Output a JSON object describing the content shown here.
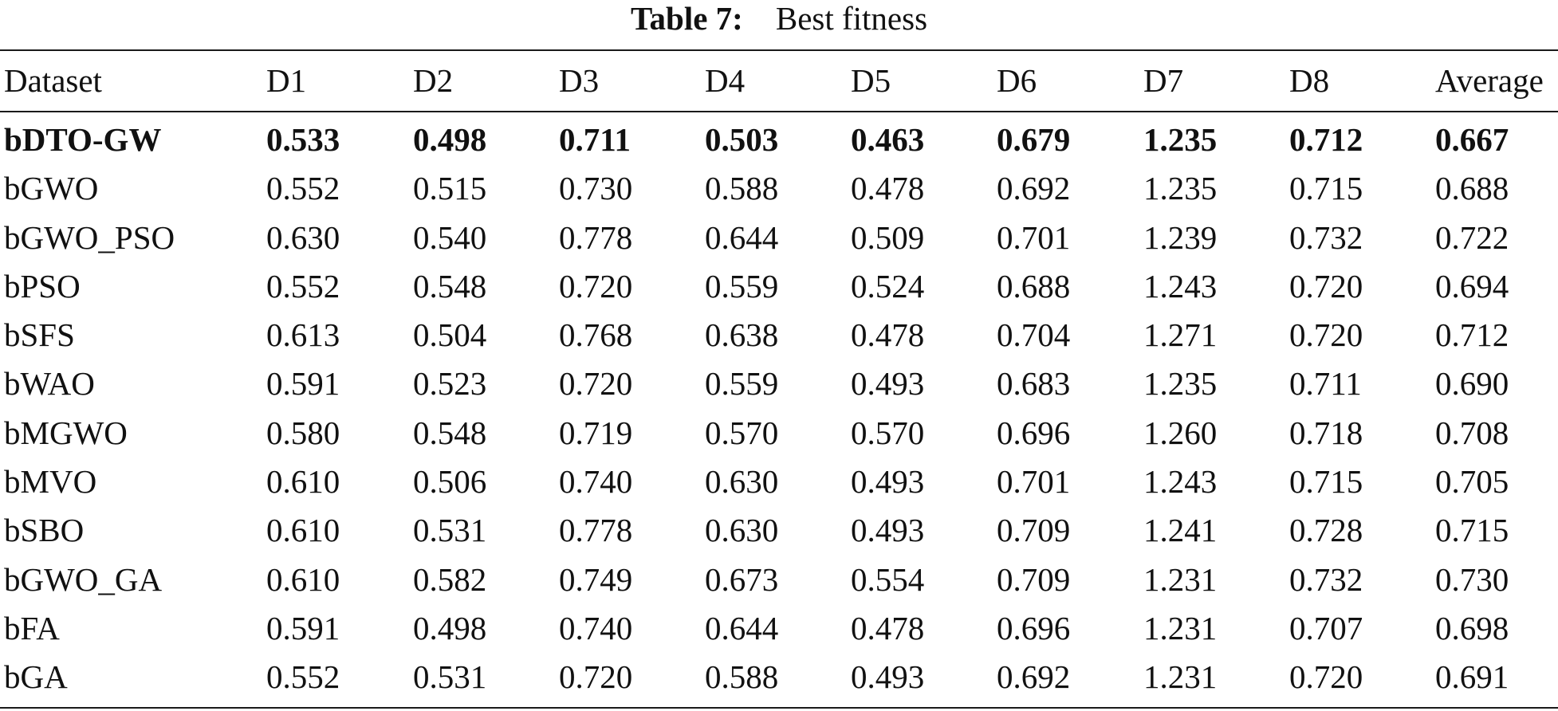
{
  "caption": {
    "label": "Table 7:",
    "text": "Best fitness"
  },
  "table": {
    "headers": [
      "Dataset",
      "D1",
      "D2",
      "D3",
      "D4",
      "D5",
      "D6",
      "D7",
      "D8",
      "Average"
    ],
    "rows": [
      [
        "bDTO-GW",
        "0.533",
        "0.498",
        "0.711",
        "0.503",
        "0.463",
        "0.679",
        "1.235",
        "0.712",
        "0.667"
      ],
      [
        "bGWO",
        "0.552",
        "0.515",
        "0.730",
        "0.588",
        "0.478",
        "0.692",
        "1.235",
        "0.715",
        "0.688"
      ],
      [
        "bGWO_PSO",
        "0.630",
        "0.540",
        "0.778",
        "0.644",
        "0.509",
        "0.701",
        "1.239",
        "0.732",
        "0.722"
      ],
      [
        "bPSO",
        "0.552",
        "0.548",
        "0.720",
        "0.559",
        "0.524",
        "0.688",
        "1.243",
        "0.720",
        "0.694"
      ],
      [
        "bSFS",
        "0.613",
        "0.504",
        "0.768",
        "0.638",
        "0.478",
        "0.704",
        "1.271",
        "0.720",
        "0.712"
      ],
      [
        "bWAO",
        "0.591",
        "0.523",
        "0.720",
        "0.559",
        "0.493",
        "0.683",
        "1.235",
        "0.711",
        "0.690"
      ],
      [
        "bMGWO",
        "0.580",
        "0.548",
        "0.719",
        "0.570",
        "0.570",
        "0.696",
        "1.260",
        "0.718",
        "0.708"
      ],
      [
        "bMVO",
        "0.610",
        "0.506",
        "0.740",
        "0.630",
        "0.493",
        "0.701",
        "1.243",
        "0.715",
        "0.705"
      ],
      [
        "bSBO",
        "0.610",
        "0.531",
        "0.778",
        "0.630",
        "0.493",
        "0.709",
        "1.241",
        "0.728",
        "0.715"
      ],
      [
        "bGWO_GA",
        "0.610",
        "0.582",
        "0.749",
        "0.673",
        "0.554",
        "0.709",
        "1.231",
        "0.732",
        "0.730"
      ],
      [
        "bFA",
        "0.591",
        "0.498",
        "0.740",
        "0.644",
        "0.478",
        "0.696",
        "1.231",
        "0.707",
        "0.698"
      ],
      [
        "bGA",
        "0.552",
        "0.531",
        "0.720",
        "0.588",
        "0.493",
        "0.692",
        "1.231",
        "0.720",
        "0.691"
      ]
    ]
  }
}
